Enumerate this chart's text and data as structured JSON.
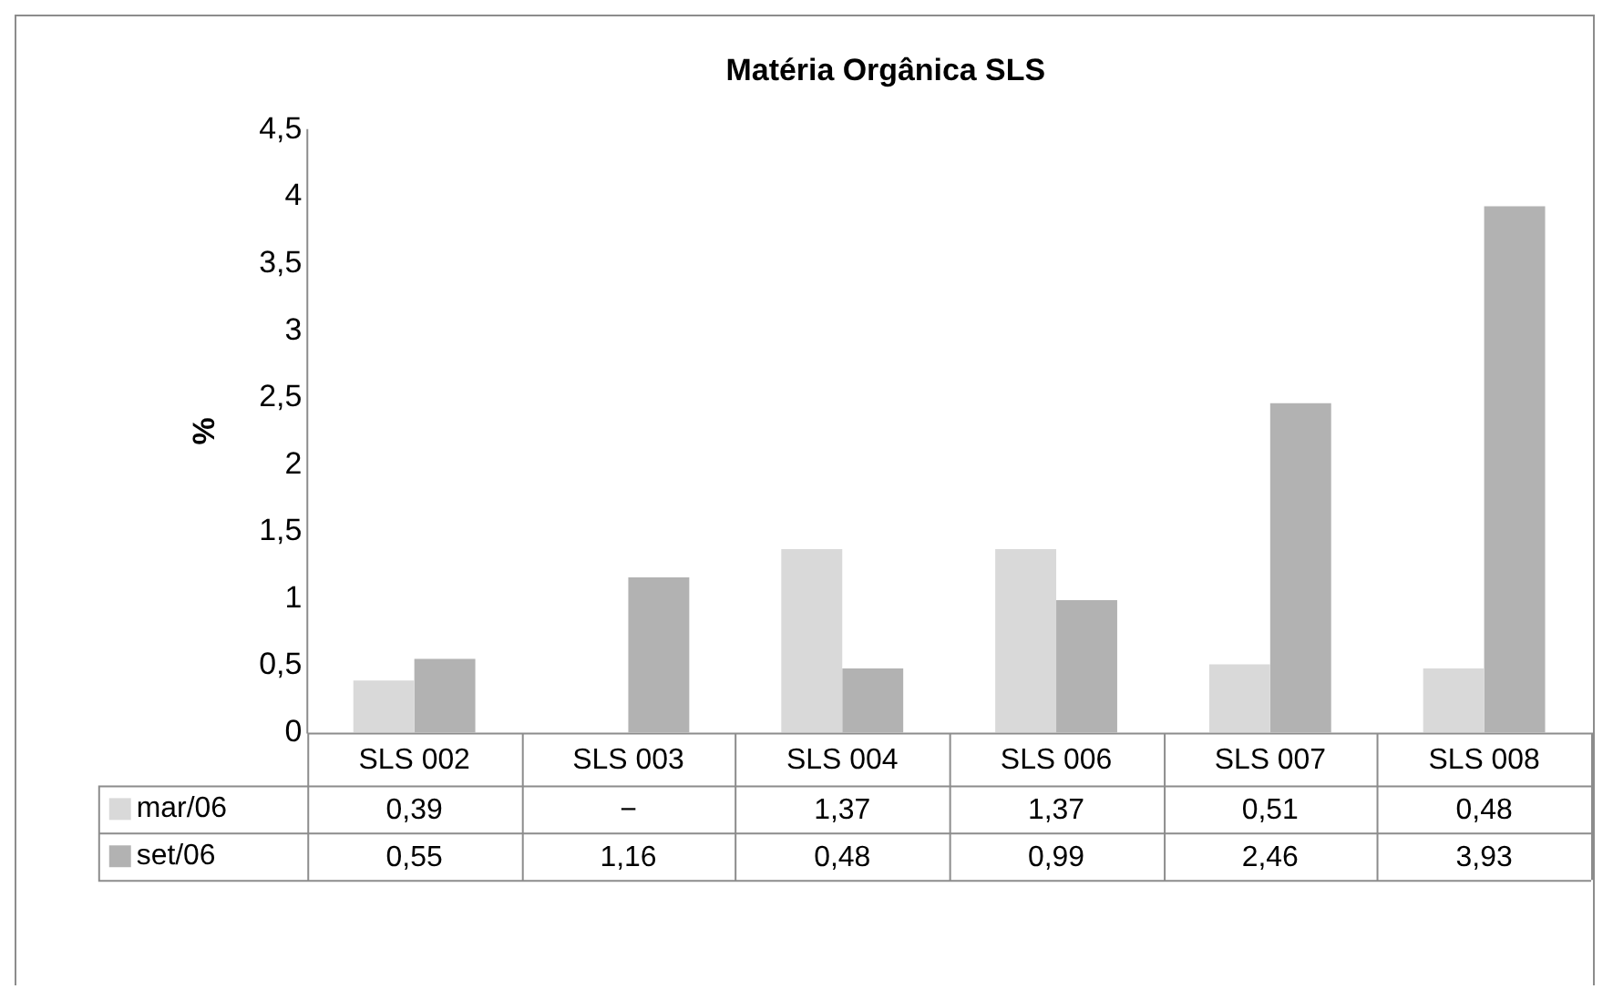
{
  "chart_data": {
    "type": "bar",
    "title": "Matéria Orgânica SLS",
    "ylabel": "%",
    "categories": [
      "SLS 002",
      "SLS 003",
      "SLS 004",
      "SLS 006",
      "SLS 007",
      "SLS 008"
    ],
    "series": [
      {
        "name": "mar/06",
        "color": "#d9d9d9",
        "values": [
          0.39,
          null,
          1.37,
          1.37,
          0.51,
          0.48
        ],
        "value_labels": [
          "0,39",
          "−",
          "1,37",
          "1,37",
          "0,51",
          "0,48"
        ]
      },
      {
        "name": "set/06",
        "color": "#b2b2b2",
        "values": [
          0.55,
          1.16,
          0.48,
          0.99,
          2.46,
          3.93
        ],
        "value_labels": [
          "0,55",
          "1,16",
          "0,48",
          "0,99",
          "2,46",
          "3,93"
        ]
      }
    ],
    "ylim": [
      0,
      4.5
    ],
    "yticks": [
      {
        "value": 0,
        "label": "0"
      },
      {
        "value": 0.5,
        "label": "0,5"
      },
      {
        "value": 1,
        "label": "1"
      },
      {
        "value": 1.5,
        "label": "1,5"
      },
      {
        "value": 2,
        "label": "2"
      },
      {
        "value": 2.5,
        "label": "2,5"
      },
      {
        "value": 3,
        "label": "3"
      },
      {
        "value": 3.5,
        "label": "3,5"
      },
      {
        "value": 4,
        "label": "4"
      },
      {
        "value": 4.5,
        "label": "4,5"
      }
    ],
    "grid": false,
    "legend": "bottom left"
  }
}
